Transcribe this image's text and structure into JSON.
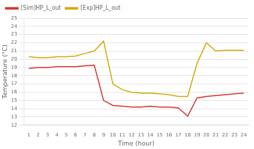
{
  "chart_data": {
    "type": "line",
    "xlabel": "Time (hour)",
    "ylabel": "Temperature (°C)",
    "x": [
      1,
      2,
      3,
      4,
      5,
      6,
      7,
      8,
      9,
      10,
      11,
      12,
      13,
      14,
      15,
      16,
      17,
      18,
      19,
      20,
      21,
      22,
      23,
      24
    ],
    "series": [
      {
        "name": "[Sim]HP_L_out",
        "color": "#d9302a",
        "values": [
          18.9,
          19.0,
          19.0,
          19.1,
          19.1,
          19.1,
          19.2,
          19.3,
          15.0,
          14.4,
          14.3,
          14.2,
          14.2,
          14.3,
          14.2,
          14.2,
          14.1,
          13.1,
          15.3,
          15.5,
          15.6,
          15.7,
          15.8,
          15.9
        ]
      },
      {
        "name": "[Exp]HP_L_out",
        "color": "#d4a800",
        "values": [
          20.3,
          20.2,
          20.2,
          20.3,
          20.3,
          20.4,
          20.7,
          21.0,
          22.2,
          17.0,
          16.3,
          16.0,
          15.9,
          15.9,
          15.8,
          15.7,
          15.5,
          15.5,
          19.5,
          22.0,
          21.0,
          21.1,
          21.1,
          21.1
        ]
      }
    ],
    "xlim": [
      0.5,
      24.5
    ],
    "xticks": [
      1,
      2,
      3,
      4,
      5,
      6,
      7,
      8,
      9,
      10,
      11,
      12,
      13,
      14,
      15,
      16,
      17,
      18,
      19,
      20,
      21,
      22,
      23,
      24
    ],
    "ylim": [
      12,
      25
    ],
    "yticks": [
      12,
      13,
      14,
      15,
      16,
      17,
      18,
      19,
      20,
      21,
      22,
      23,
      24,
      25
    ],
    "grid": "y",
    "legend": "upper left"
  }
}
